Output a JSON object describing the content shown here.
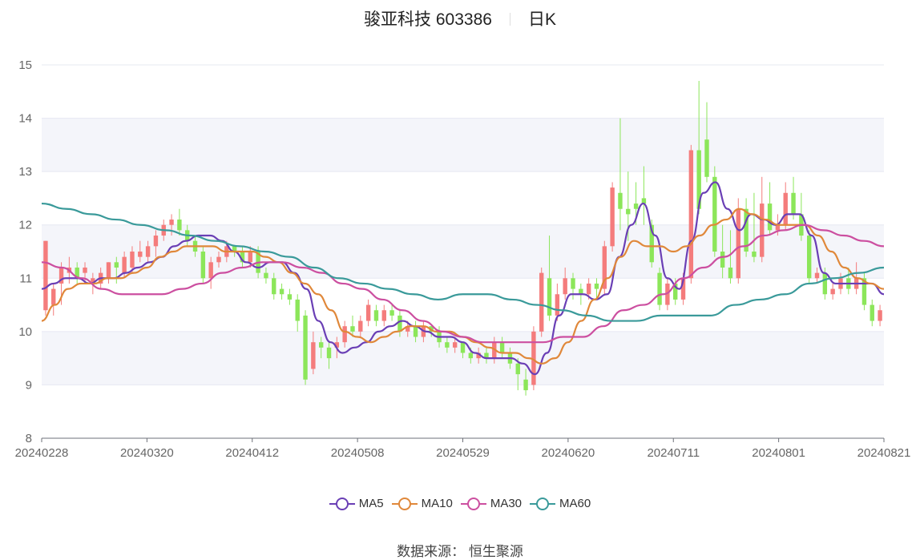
{
  "header": {
    "title": "骏亚科技 603386",
    "period": "日K"
  },
  "legend": [
    {
      "label": "MA5",
      "color": "#6a3fb5"
    },
    {
      "label": "MA10",
      "color": "#e0883a"
    },
    {
      "label": "MA30",
      "color": "#cc4fa0"
    },
    {
      "label": "MA60",
      "color": "#3a9a9a"
    }
  ],
  "source": "数据来源： 恒生聚源",
  "colors": {
    "up": "#f47c7c",
    "down": "#8ce65a",
    "grid": "#e6e8f2",
    "band": "#f4f5fa"
  },
  "chart_data": {
    "type": "candlestick",
    "ylim": [
      8,
      15
    ],
    "yticks": [
      "8",
      "9",
      "10",
      "11",
      "12",
      "13",
      "14",
      "15"
    ],
    "xticks": [
      "20240228",
      "20240320",
      "20240412",
      "20240508",
      "20240529",
      "20240620",
      "20240711",
      "20240801",
      "20240821"
    ],
    "candles": [
      [
        10.4,
        11.7,
        10.3,
        11.7
      ],
      [
        10.5,
        10.8,
        10.3,
        10.9
      ],
      [
        10.9,
        11.2,
        10.5,
        11.3
      ],
      [
        11.1,
        11.2,
        10.9,
        11.4
      ],
      [
        11.2,
        11.0,
        10.9,
        11.3
      ],
      [
        11.1,
        11.2,
        10.9,
        11.3
      ],
      [
        10.9,
        11.0,
        10.7,
        11.1
      ],
      [
        10.9,
        11.1,
        10.8,
        11.2
      ],
      [
        11.0,
        11.3,
        10.9,
        11.3
      ],
      [
        11.3,
        11.2,
        10.9,
        11.4
      ],
      [
        11.1,
        11.4,
        11.0,
        11.5
      ],
      [
        11.2,
        11.5,
        11.1,
        11.6
      ],
      [
        11.4,
        11.5,
        11.3,
        11.7
      ],
      [
        11.4,
        11.6,
        11.3,
        11.7
      ],
      [
        11.6,
        11.8,
        11.4,
        11.9
      ],
      [
        11.8,
        12.0,
        11.7,
        12.1
      ],
      [
        12.0,
        12.1,
        11.8,
        12.2
      ],
      [
        12.1,
        11.9,
        11.8,
        12.3
      ],
      [
        11.9,
        11.7,
        11.6,
        12.0
      ],
      [
        11.7,
        11.5,
        11.4,
        11.8
      ],
      [
        11.5,
        11.0,
        10.9,
        11.6
      ],
      [
        11.0,
        11.3,
        10.8,
        11.4
      ],
      [
        11.3,
        11.4,
        11.2,
        11.5
      ],
      [
        11.4,
        11.6,
        11.3,
        11.7
      ],
      [
        11.6,
        11.5,
        11.4,
        11.6
      ],
      [
        11.5,
        11.3,
        11.2,
        11.6
      ],
      [
        11.3,
        11.5,
        11.2,
        11.6
      ],
      [
        11.5,
        11.1,
        11.0,
        11.6
      ],
      [
        11.1,
        11.0,
        10.9,
        11.2
      ],
      [
        11.0,
        10.7,
        10.6,
        11.1
      ],
      [
        10.8,
        10.7,
        10.6,
        10.9
      ],
      [
        10.7,
        10.6,
        10.5,
        10.8
      ],
      [
        10.6,
        10.2,
        10.0,
        10.7
      ],
      [
        10.3,
        9.1,
        9.0,
        10.4
      ],
      [
        9.3,
        9.8,
        9.2,
        10.0
      ],
      [
        9.8,
        9.7,
        9.5,
        9.9
      ],
      [
        9.7,
        9.5,
        9.3,
        9.8
      ],
      [
        9.7,
        9.8,
        9.5,
        9.9
      ],
      [
        9.8,
        10.1,
        9.7,
        10.2
      ],
      [
        10.1,
        10.0,
        9.9,
        10.3
      ],
      [
        10.0,
        10.2,
        9.9,
        10.3
      ],
      [
        10.2,
        10.5,
        10.1,
        10.6
      ],
      [
        10.4,
        10.2,
        10.1,
        10.5
      ],
      [
        10.2,
        10.4,
        10.1,
        10.5
      ],
      [
        10.4,
        10.3,
        10.2,
        10.5
      ],
      [
        10.3,
        10.0,
        9.9,
        10.4
      ],
      [
        10.0,
        10.1,
        9.9,
        10.2
      ],
      [
        10.1,
        9.9,
        9.8,
        10.2
      ],
      [
        9.9,
        10.1,
        9.8,
        10.2
      ],
      [
        10.1,
        10.0,
        9.9,
        10.1
      ],
      [
        10.0,
        9.8,
        9.7,
        10.1
      ],
      [
        9.8,
        9.7,
        9.6,
        9.9
      ],
      [
        9.7,
        9.8,
        9.6,
        9.9
      ],
      [
        9.8,
        9.6,
        9.5,
        9.8
      ],
      [
        9.6,
        9.5,
        9.4,
        9.7
      ],
      [
        9.5,
        9.6,
        9.4,
        9.7
      ],
      [
        9.6,
        9.5,
        9.4,
        9.7
      ],
      [
        9.5,
        9.8,
        9.4,
        9.9
      ],
      [
        9.8,
        9.6,
        9.5,
        9.9
      ],
      [
        9.6,
        9.4,
        9.3,
        9.7
      ],
      [
        9.4,
        9.2,
        8.9,
        9.5
      ],
      [
        9.1,
        8.9,
        8.8,
        9.3
      ],
      [
        9.0,
        10.0,
        8.9,
        10.1
      ],
      [
        10.0,
        11.1,
        9.9,
        11.2
      ],
      [
        11.0,
        10.3,
        10.2,
        11.8
      ],
      [
        10.3,
        10.7,
        10.2,
        10.9
      ],
      [
        10.7,
        11.0,
        10.6,
        11.2
      ],
      [
        11.0,
        10.8,
        10.6,
        11.1
      ],
      [
        10.8,
        10.7,
        10.5,
        10.9
      ],
      [
        10.7,
        10.9,
        10.6,
        11.0
      ],
      [
        10.9,
        10.8,
        10.6,
        11.0
      ],
      [
        10.8,
        11.6,
        10.7,
        11.7
      ],
      [
        11.6,
        12.7,
        11.5,
        12.8
      ],
      [
        12.6,
        12.3,
        11.9,
        14.0
      ],
      [
        12.3,
        12.2,
        11.7,
        13.0
      ],
      [
        12.4,
        12.3,
        12.0,
        12.8
      ],
      [
        12.5,
        12.4,
        12.0,
        13.1
      ],
      [
        12.0,
        11.3,
        11.2,
        12.1
      ],
      [
        11.1,
        10.5,
        10.4,
        11.2
      ],
      [
        10.5,
        10.9,
        10.4,
        11.0
      ],
      [
        10.9,
        10.6,
        10.5,
        11.0
      ],
      [
        10.6,
        11.0,
        10.5,
        11.1
      ],
      [
        11.0,
        13.4,
        10.9,
        13.5
      ],
      [
        13.4,
        12.3,
        12.2,
        14.7
      ],
      [
        13.6,
        12.9,
        12.8,
        14.3
      ],
      [
        12.9,
        11.5,
        11.4,
        13.1
      ],
      [
        11.5,
        11.2,
        11.0,
        12.0
      ],
      [
        11.2,
        11.0,
        10.9,
        11.9
      ],
      [
        11.0,
        12.3,
        10.9,
        12.5
      ],
      [
        12.3,
        11.5,
        11.4,
        12.5
      ],
      [
        11.5,
        11.4,
        11.3,
        12.6
      ],
      [
        11.4,
        12.4,
        11.3,
        12.9
      ],
      [
        12.4,
        11.9,
        11.8,
        12.8
      ],
      [
        11.9,
        12.0,
        11.8,
        12.2
      ],
      [
        12.0,
        12.6,
        11.9,
        12.8
      ],
      [
        12.6,
        12.2,
        12.1,
        12.9
      ],
      [
        12.2,
        11.8,
        11.7,
        12.6
      ],
      [
        11.8,
        11.0,
        10.9,
        11.9
      ],
      [
        11.0,
        11.1,
        10.9,
        11.2
      ],
      [
        11.1,
        10.7,
        10.6,
        11.2
      ],
      [
        10.7,
        10.8,
        10.6,
        10.9
      ],
      [
        10.8,
        11.0,
        10.7,
        11.1
      ],
      [
        11.0,
        10.8,
        10.7,
        11.2
      ],
      [
        10.8,
        11.0,
        10.7,
        11.3
      ],
      [
        11.0,
        10.5,
        10.4,
        11.1
      ],
      [
        10.5,
        10.2,
        10.1,
        10.6
      ],
      [
        10.2,
        10.4,
        10.1,
        10.5
      ]
    ],
    "ma": {
      "MA5": [
        10.8,
        10.9,
        11.0,
        11.0,
        10.9,
        11.0,
        11.0,
        11.1,
        11.2,
        11.3,
        11.4,
        11.6,
        11.7,
        11.8,
        11.8,
        11.7,
        11.5,
        11.3,
        11.2,
        11.3,
        11.3,
        11.1,
        10.8,
        10.2,
        9.8,
        9.6,
        9.7,
        9.8,
        10.0,
        10.1,
        10.2,
        10.1,
        10.0,
        9.9,
        9.9,
        9.8,
        9.6,
        9.5,
        9.5,
        9.5,
        9.4,
        9.2,
        9.6,
        10.3,
        10.7,
        10.7,
        10.6,
        10.7,
        11.4,
        12.0,
        12.4,
        11.8,
        11.0,
        10.8,
        11.7,
        12.6,
        12.8,
        12.3,
        11.9,
        12.2,
        12.1,
        12.0,
        12.2,
        12.2,
        11.8,
        11.1,
        10.9,
        10.9,
        10.9,
        10.9,
        10.7
      ],
      "MA10": [
        10.2,
        10.5,
        10.8,
        10.9,
        10.9,
        11.0,
        11.0,
        11.1,
        11.2,
        11.4,
        11.5,
        11.6,
        11.6,
        11.6,
        11.5,
        11.5,
        11.5,
        11.4,
        11.3,
        11.1,
        10.9,
        10.7,
        10.4,
        10.0,
        9.9,
        9.8,
        9.9,
        10.0,
        10.1,
        10.1,
        10.0,
        10.0,
        9.9,
        9.8,
        9.7,
        9.6,
        9.6,
        9.5,
        9.4,
        9.5,
        9.8,
        10.2,
        10.6,
        11.0,
        11.4,
        11.7,
        11.6,
        11.6,
        11.5,
        11.6,
        11.8,
        12.0,
        12.1,
        12.3,
        12.2,
        12.1,
        12.0,
        12.0,
        12.0,
        11.8,
        11.5,
        11.2,
        11.0,
        10.9,
        10.8
      ],
      "MA30": [
        11.3,
        11.2,
        11.0,
        10.8,
        10.7,
        10.7,
        10.7,
        10.8,
        10.9,
        11.1,
        11.2,
        11.3,
        11.3,
        11.2,
        11.1,
        10.9,
        10.8,
        10.6,
        10.4,
        10.2,
        10.0,
        9.9,
        9.8,
        9.8,
        9.8,
        9.8,
        9.9,
        9.9,
        10.1,
        10.4,
        10.5,
        10.7,
        11.0,
        11.2,
        11.4,
        11.6,
        11.8,
        11.9,
        12.0,
        11.9,
        11.8,
        11.7,
        11.6
      ],
      "MA60": [
        12.4,
        12.3,
        12.2,
        12.1,
        12.0,
        11.9,
        11.8,
        11.7,
        11.6,
        11.5,
        11.4,
        11.2,
        11.0,
        10.9,
        10.8,
        10.7,
        10.6,
        10.7,
        10.7,
        10.6,
        10.5,
        10.4,
        10.3,
        10.2,
        10.2,
        10.3,
        10.3,
        10.3,
        10.5,
        10.6,
        10.7,
        10.9,
        11.0,
        11.1,
        11.2
      ]
    }
  }
}
